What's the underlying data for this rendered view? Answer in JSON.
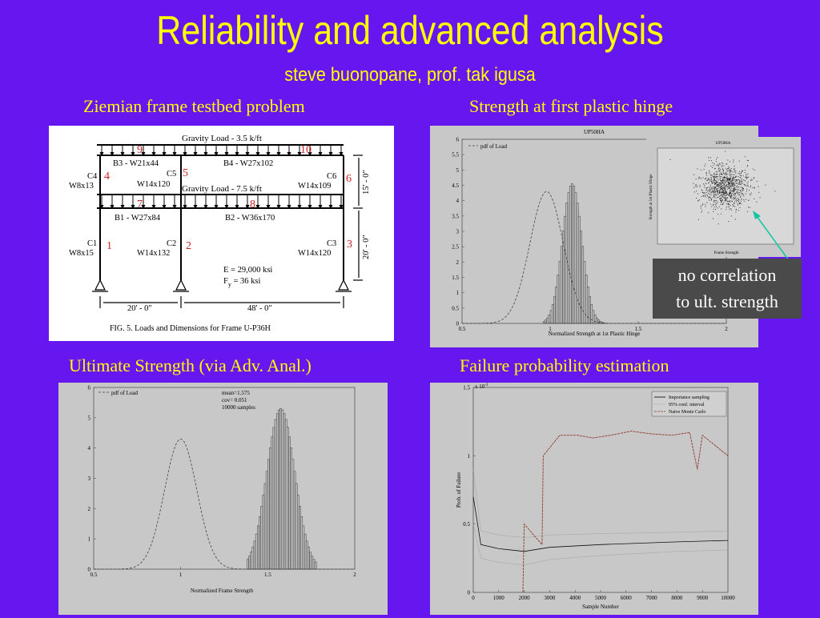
{
  "slide": {
    "title": "Reliability and advanced analysis",
    "subtitle": "steve buonopane, prof. tak igusa",
    "captions": {
      "frame": "Ziemian frame testbed problem",
      "hinge": "Strength at first plastic hinge",
      "ultimate": "Ultimate Strength (via Adv. Anal.)",
      "failure": "Failure probability estimation"
    },
    "callout": [
      "no correlation",
      "to ult. strength"
    ]
  },
  "frame_figure": {
    "gravity_top": "Gravity Load - 3.5 k/ft",
    "gravity_mid": "Gravity Load - 7.5 k/ft",
    "beams": {
      "b3": "B3 - W21x44",
      "b4": "B4 - W27x102",
      "b1": "B1 - W27x84",
      "b2": "B2 - W36x170"
    },
    "columns": {
      "c4": [
        "C4",
        "W8x13"
      ],
      "c5": [
        "C5",
        "W14x120"
      ],
      "c6": [
        "C6",
        "W14x109"
      ],
      "c1": [
        "C1",
        "W8x15"
      ],
      "c2": [
        "C2",
        "W14x132"
      ],
      "c3": [
        "C3",
        "W14x120"
      ]
    },
    "hinge_numbers": [
      "1",
      "2",
      "3",
      "4",
      "5",
      "6",
      "7",
      "8",
      "9",
      "10"
    ],
    "dims": {
      "h_top": "15' - 0\"",
      "h_bottom": "20' - 0\"",
      "w_left": "20' - 0\"",
      "w_right": "48' - 0\""
    },
    "props": {
      "e": "E = 29,000 ksi",
      "fy": "F",
      "fy_sub": "y",
      "fy_val": " = 36 ksi"
    },
    "caption": "FIG. 5.   Loads and Dimensions for Frame U-P36H"
  },
  "hinge_chart": {
    "header": "UP50HA",
    "legend": "pdf of Load",
    "xlabel": "Normalized Strength at 1st Plastic Hinge",
    "yticks": [
      "0",
      "0.5",
      "1",
      "1.5",
      "2",
      "2.5",
      "3",
      "3.5",
      "4",
      "4.5",
      "5",
      "5.5",
      "6"
    ],
    "xticks": [
      "0.5",
      "1",
      "1.5",
      "2"
    ],
    "inset": {
      "title": "UP50HA",
      "xlabel": "Frame Strength",
      "ylabel": "Strength at 1st Plastic Hinge"
    }
  },
  "ultimate_chart": {
    "legend": "pdf of Load",
    "stats": [
      "mean=1.575",
      "cov=   0.051",
      "10000 samples"
    ],
    "xlabel": "Normalized Frame Strength",
    "yticks": [
      "0",
      "1",
      "2",
      "3",
      "4",
      "5",
      "6"
    ],
    "xticks": [
      "0.5",
      "1",
      "1.5",
      "2"
    ]
  },
  "failure_chart": {
    "exponent": "x 10",
    "exponent_power": "-3",
    "legend": [
      "Importance sampling",
      "95% conf. interval",
      "Naive Monte Carlo"
    ],
    "xlabel": "Sample Number",
    "ylabel": "Prob. of Failure",
    "yticks": [
      "0",
      "0.5",
      "1",
      "1.5"
    ],
    "xticks": [
      "0",
      "1000",
      "2000",
      "3000",
      "4000",
      "5000",
      "6000",
      "7000",
      "8000",
      "9000",
      "10000"
    ]
  },
  "chart_data": [
    {
      "type": "area",
      "title": "UP50HA",
      "xlabel": "Normalized Strength at 1st Plastic Hinge",
      "ylim": [
        0,
        6
      ],
      "xlim": [
        0.5,
        2
      ],
      "series": [
        {
          "name": "pdf of Load",
          "style": "dashed line",
          "mean": 0.98,
          "peak": 4.3
        },
        {
          "style": "histogram",
          "x": [
            1.05,
            1.075,
            1.1,
            1.125,
            1.15,
            1.175,
            1.2,
            1.225
          ],
          "values": [
            3.4,
            4.3,
            4.55,
            4.45,
            3.9,
            3.3,
            2.1,
            1.2
          ]
        }
      ]
    },
    {
      "type": "area",
      "xlabel": "Normalized Frame Strength",
      "ylim": [
        0,
        6
      ],
      "xlim": [
        0.5,
        2
      ],
      "series": [
        {
          "name": "pdf of Load",
          "style": "dashed line",
          "mean": 1.0,
          "peak": 4.3
        },
        {
          "style": "histogram",
          "mean": 1.575,
          "cov": 0.051,
          "samples": 10000,
          "peak": 5.3
        }
      ]
    },
    {
      "type": "line",
      "xlabel": "Sample Number",
      "ylabel": "Prob. of Failure",
      "xlim": [
        0,
        10000
      ],
      "ylim": [
        0,
        1.5
      ],
      "y_scale_factor": "1e-3",
      "series": [
        {
          "name": "Importance sampling",
          "x": [
            0,
            300,
            1000,
            2000,
            3000,
            5000,
            8000,
            10000
          ],
          "values": [
            0.7,
            0.35,
            0.32,
            0.3,
            0.33,
            0.35,
            0.37,
            0.38
          ]
        },
        {
          "name": "95% conf. interval",
          "x": [
            0,
            300,
            1000,
            2000,
            3000,
            5000,
            8000,
            10000
          ],
          "values": [
            0.9,
            0.45,
            0.42,
            0.4,
            0.42,
            0.43,
            0.44,
            0.45
          ]
        },
        {
          "name": "Naive Monte Carlo",
          "x": [
            1950,
            2000,
            2700,
            2750,
            3400,
            4100,
            4700,
            5400,
            6200,
            7000,
            7800,
            8500,
            8800,
            9000,
            10000
          ],
          "values": [
            0,
            0.5,
            0.35,
            1.0,
            1.15,
            1.15,
            1.13,
            1.15,
            1.18,
            1.16,
            1.15,
            1.17,
            0.9,
            1.15,
            1.0
          ]
        }
      ]
    }
  ]
}
